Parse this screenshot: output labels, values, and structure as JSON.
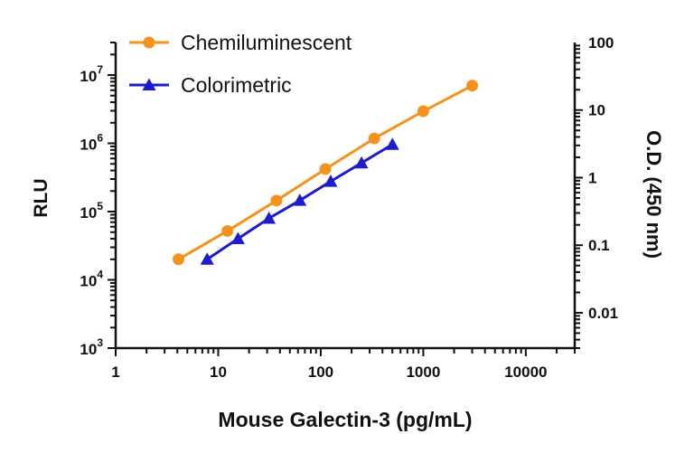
{
  "chart_data": {
    "type": "line",
    "title": "",
    "xlabel": "Mouse Galectin-3 (pg/mL)",
    "ylabel": "RLU",
    "y2label": "O.D. (450 nm)",
    "xscale": "log",
    "yscale": "log",
    "y2scale": "log",
    "xlim": [
      1,
      30000
    ],
    "ylim": [
      1000,
      30000000
    ],
    "y2lim": [
      0.003,
      100
    ],
    "x_ticks": [
      {
        "value": 1,
        "label": "1"
      },
      {
        "value": 10,
        "label": "10"
      },
      {
        "value": 100,
        "label": "100"
      },
      {
        "value": 1000,
        "label": "1000"
      },
      {
        "value": 10000,
        "label": "10000"
      }
    ],
    "y_ticks": [
      {
        "value": 1000,
        "base": "10",
        "exp": "3"
      },
      {
        "value": 10000,
        "base": "10",
        "exp": "4"
      },
      {
        "value": 100000,
        "base": "10",
        "exp": "5"
      },
      {
        "value": 1000000,
        "base": "10",
        "exp": "6"
      },
      {
        "value": 10000000,
        "base": "10",
        "exp": "7"
      }
    ],
    "y2_ticks": [
      {
        "value": 0.01,
        "label": "0.01"
      },
      {
        "value": 0.1,
        "label": "0.1"
      },
      {
        "value": 1,
        "label": "1"
      },
      {
        "value": 10,
        "label": "10"
      },
      {
        "value": 100,
        "label": "100"
      }
    ],
    "grid": false,
    "legend_position": "top-left",
    "series": [
      {
        "name": "Chemiluminescent",
        "axis": "left",
        "marker": "circle",
        "color": "#f5921e",
        "x": [
          4.1,
          12.3,
          37,
          111,
          333,
          1000,
          3000
        ],
        "y": [
          20000,
          52000,
          145000,
          420000,
          1180000,
          2950000,
          7000000
        ]
      },
      {
        "name": "Colorimetric",
        "axis": "right",
        "marker": "triangle",
        "color": "#1c1ccc",
        "x": [
          7.8,
          15.6,
          31.25,
          62.5,
          125,
          250,
          500
        ],
        "y": [
          0.062,
          0.125,
          0.25,
          0.46,
          0.88,
          1.65,
          3.1
        ]
      }
    ]
  }
}
